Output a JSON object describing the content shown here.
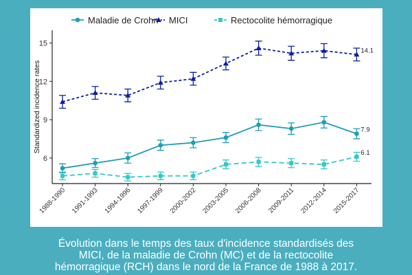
{
  "chart_data": {
    "type": "line",
    "ylabel": "Standardized incidence rates",
    "xlabel": "",
    "ylim": [
      4.0,
      16.0
    ],
    "yticks": [
      6,
      9,
      12,
      15
    ],
    "categories": [
      "1988-1990",
      "1991-1993",
      "1994-1996",
      "1997-1999",
      "2000-2002",
      "2003-2005",
      "2006-2008",
      "2009-2011",
      "2012-2014",
      "2015-2017"
    ],
    "legend_position": "top",
    "series": [
      {
        "name": "Maladie de Crohn",
        "color": "#1f9db3",
        "line": "solid",
        "marker": "circle",
        "values": [
          5.2,
          5.6,
          6.0,
          7.0,
          7.2,
          7.6,
          8.6,
          8.3,
          8.8,
          7.9
        ],
        "err": [
          0.35,
          0.35,
          0.4,
          0.4,
          0.4,
          0.4,
          0.45,
          0.45,
          0.45,
          0.4
        ],
        "end_label": "7.9"
      },
      {
        "name": "MICI",
        "color": "#0b1fa0",
        "line": "dotted",
        "marker": "triangle",
        "values": [
          10.4,
          11.1,
          10.9,
          11.9,
          12.2,
          13.4,
          14.6,
          14.2,
          14.4,
          14.1
        ],
        "err": [
          0.5,
          0.5,
          0.5,
          0.5,
          0.5,
          0.5,
          0.55,
          0.55,
          0.55,
          0.5
        ],
        "end_label": "14.1"
      },
      {
        "name": "Rectocolite hémorragique",
        "color": "#33c8c8",
        "line": "dashed",
        "marker": "square",
        "values": [
          4.6,
          4.8,
          4.5,
          4.6,
          4.6,
          5.5,
          5.7,
          5.6,
          5.5,
          6.1
        ],
        "err": [
          0.3,
          0.3,
          0.3,
          0.3,
          0.3,
          0.35,
          0.35,
          0.35,
          0.35,
          0.35
        ],
        "end_label": "6.1"
      }
    ]
  },
  "caption": {
    "line1": "Évolution dans le temps des taux d'incidence standardisés des",
    "line2": "MICI, de la maladie de Crohn (MC) et de la rectocolite",
    "line3": "hémorragique (RCH) dans le nord de la France de 1988 à 2017."
  }
}
